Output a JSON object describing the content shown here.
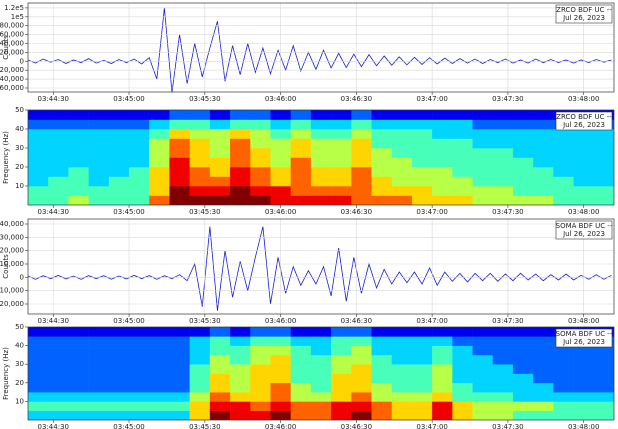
{
  "chart_data": [
    {
      "type": "line",
      "station": "ZRCO BDF UC --",
      "date": "Jul 26, 2023",
      "ylabel": "Counts",
      "color": "#1c1ccf",
      "grid": true,
      "x": [
        13460,
        13463,
        13466,
        13469,
        13472,
        13475,
        13478,
        13481,
        13484,
        13487,
        13490,
        13493,
        13496,
        13499,
        13502,
        13505,
        13508,
        13511,
        13514,
        13517,
        13520,
        13523,
        13526,
        13529,
        13532,
        13535,
        13538,
        13541,
        13544,
        13547,
        13550,
        13553,
        13556,
        13559,
        13562,
        13565,
        13568,
        13571,
        13574,
        13577,
        13580,
        13583,
        13586,
        13589,
        13592,
        13595,
        13598,
        13601,
        13604,
        13607,
        13610,
        13613,
        13616,
        13619,
        13622,
        13625,
        13628,
        13631,
        13634,
        13637,
        13640,
        13643,
        13646,
        13649,
        13652,
        13655,
        13658,
        13661,
        13664,
        13667,
        13670,
        13673,
        13676,
        13679,
        13682,
        13685,
        13688,
        13691
      ],
      "values": [
        3000,
        -4000,
        5000,
        -2000,
        4000,
        -5000,
        3000,
        -3000,
        6000,
        -4000,
        2000,
        -5000,
        4000,
        -3000,
        5000,
        -6000,
        8000,
        -40000,
        120000,
        -70000,
        60000,
        -50000,
        40000,
        -35000,
        30000,
        90000,
        -45000,
        35000,
        -30000,
        40000,
        -25000,
        30000,
        -28000,
        25000,
        -20000,
        35000,
        -22000,
        20000,
        -18000,
        25000,
        -15000,
        18000,
        -14000,
        16000,
        -12000,
        15000,
        -10000,
        12000,
        -9000,
        10000,
        -8000,
        9000,
        -7000,
        8000,
        -6000,
        7000,
        -5000,
        6000,
        -4000,
        5000,
        -5000,
        4000,
        -3000,
        5000,
        -4000,
        3000,
        -4000,
        5000,
        -3000,
        4000,
        -3000,
        3000,
        -4000,
        3000,
        -3000,
        4000,
        -2000,
        3000
      ],
      "xlim": [
        13460,
        13692
      ],
      "xticks": [
        {
          "value": 13470,
          "label": "03:44:30"
        },
        {
          "value": 13500,
          "label": "03:45:00"
        },
        {
          "value": 13530,
          "label": "03:45:30"
        },
        {
          "value": 13560,
          "label": "03:46:00"
        },
        {
          "value": 13590,
          "label": "03:46:30"
        },
        {
          "value": 13620,
          "label": "03:47:00"
        },
        {
          "value": 13650,
          "label": "03:47:30"
        },
        {
          "value": 13680,
          "label": "03:48:00"
        }
      ],
      "ylim": [
        -69000,
        131000
      ],
      "yticks": [
        {
          "value": -60000,
          "label": "-60,000"
        },
        {
          "value": -40000,
          "label": "-40,000"
        },
        {
          "value": -20000,
          "label": "-20,000"
        },
        0,
        {
          "value": 20000,
          "label": "20,000"
        },
        {
          "value": 40000,
          "label": "40,000"
        },
        {
          "value": 60000,
          "label": "60,000"
        },
        {
          "value": 80000,
          "label": "80,000"
        },
        {
          "value": 100000,
          "label": "1e5"
        },
        {
          "value": 120000,
          "label": "1.2e5"
        }
      ]
    },
    {
      "type": "heatmap",
      "station": "ZRCO BDF UC --",
      "date": "Jul 26, 2023",
      "ylabel": "Frequency (Hz)",
      "zlim": [
        0,
        9
      ],
      "xbins": [
        13460,
        13468,
        13476,
        13484,
        13492,
        13500,
        13508,
        13516,
        13524,
        13532,
        13540,
        13548,
        13556,
        13564,
        13572,
        13580,
        13588,
        13596,
        13604,
        13612,
        13620,
        13628,
        13636,
        13644,
        13652,
        13660,
        13668,
        13676,
        13684,
        13692
      ],
      "ybins": [
        0,
        5,
        10,
        15,
        20,
        25,
        30,
        35,
        40,
        45,
        50
      ],
      "values": [
        [
          4,
          4,
          5,
          4,
          4,
          4,
          7,
          9,
          9,
          9,
          9,
          9,
          8,
          8,
          8,
          8,
          7,
          7,
          7,
          6,
          6,
          6,
          5,
          5,
          5,
          5,
          4,
          4,
          4
        ],
        [
          4,
          4,
          4,
          4,
          4,
          4,
          6,
          9,
          8,
          8,
          9,
          8,
          8,
          7,
          7,
          7,
          7,
          6,
          6,
          6,
          5,
          5,
          5,
          5,
          4,
          4,
          4,
          4,
          4
        ],
        [
          3,
          4,
          4,
          3,
          4,
          4,
          6,
          8,
          7,
          7,
          8,
          7,
          6,
          7,
          6,
          6,
          7,
          6,
          5,
          5,
          5,
          5,
          4,
          4,
          4,
          4,
          4,
          3,
          3
        ],
        [
          3,
          3,
          4,
          3,
          3,
          4,
          6,
          8,
          7,
          6,
          8,
          7,
          6,
          7,
          6,
          6,
          7,
          5,
          5,
          5,
          5,
          4,
          4,
          4,
          4,
          4,
          3,
          3,
          3
        ],
        [
          3,
          3,
          3,
          3,
          3,
          3,
          5,
          8,
          6,
          6,
          7,
          6,
          5,
          7,
          5,
          5,
          6,
          5,
          5,
          4,
          4,
          4,
          4,
          4,
          4,
          3,
          3,
          3,
          3
        ],
        [
          3,
          3,
          3,
          3,
          3,
          3,
          5,
          7,
          6,
          5,
          7,
          6,
          5,
          6,
          5,
          5,
          6,
          5,
          4,
          4,
          4,
          4,
          4,
          4,
          3,
          3,
          3,
          3,
          3
        ],
        [
          3,
          3,
          3,
          3,
          3,
          3,
          5,
          7,
          6,
          5,
          7,
          5,
          5,
          6,
          5,
          5,
          6,
          4,
          4,
          4,
          4,
          4,
          3,
          3,
          3,
          3,
          3,
          3,
          3
        ],
        [
          3,
          3,
          3,
          3,
          3,
          3,
          4,
          6,
          5,
          5,
          6,
          5,
          4,
          5,
          4,
          4,
          5,
          4,
          4,
          4,
          3,
          3,
          3,
          3,
          3,
          3,
          3,
          3,
          3
        ],
        [
          2,
          2,
          2,
          2,
          2,
          2,
          3,
          4,
          4,
          3,
          4,
          4,
          3,
          4,
          3,
          3,
          4,
          3,
          3,
          3,
          3,
          3,
          2,
          2,
          2,
          2,
          2,
          2,
          2
        ],
        [
          1,
          1,
          1,
          1,
          1,
          1,
          1,
          2,
          2,
          1,
          2,
          2,
          1,
          2,
          1,
          1,
          2,
          1,
          1,
          1,
          1,
          1,
          1,
          1,
          1,
          1,
          1,
          1,
          1
        ]
      ],
      "xlim": [
        13460,
        13692
      ],
      "xticks": [
        {
          "value": 13470,
          "label": "03:44:30"
        },
        {
          "value": 13500,
          "label": "03:45:00"
        },
        {
          "value": 13530,
          "label": "03:45:30"
        },
        {
          "value": 13560,
          "label": "03:46:00"
        },
        {
          "value": 13590,
          "label": "03:46:30"
        },
        {
          "value": 13620,
          "label": "03:47:00"
        },
        {
          "value": 13650,
          "label": "03:47:30"
        },
        {
          "value": 13680,
          "label": "03:48:00"
        }
      ],
      "ylim": [
        0,
        50
      ],
      "yticks": [
        10,
        20,
        30,
        40,
        50
      ]
    },
    {
      "type": "line",
      "station": "SOMA BDF UC --",
      "date": "Jul 26, 2023",
      "ylabel": "Counts",
      "color": "#1c1ccf",
      "grid": true,
      "x": [
        13460,
        13463,
        13466,
        13469,
        13472,
        13475,
        13478,
        13481,
        13484,
        13487,
        13490,
        13493,
        13496,
        13499,
        13502,
        13505,
        13508,
        13511,
        13514,
        13517,
        13520,
        13523,
        13526,
        13529,
        13532,
        13535,
        13538,
        13541,
        13544,
        13547,
        13550,
        13553,
        13556,
        13559,
        13562,
        13565,
        13568,
        13571,
        13574,
        13577,
        13580,
        13583,
        13586,
        13589,
        13592,
        13595,
        13598,
        13601,
        13604,
        13607,
        13610,
        13613,
        13616,
        13619,
        13622,
        13625,
        13628,
        13631,
        13634,
        13637,
        13640,
        13643,
        13646,
        13649,
        13652,
        13655,
        13658,
        13661,
        13664,
        13667,
        13670,
        13673,
        13676,
        13679,
        13682,
        13685,
        13688,
        13691
      ],
      "values": [
        1000,
        -1500,
        1200,
        -1000,
        1500,
        -1200,
        1000,
        -1500,
        1300,
        -1000,
        1200,
        -1400,
        1000,
        -1200,
        1500,
        -1000,
        1300,
        -1500,
        1200,
        -1000,
        2000,
        -2500,
        10000,
        -22000,
        38000,
        -25000,
        20000,
        -15000,
        12000,
        -10000,
        15000,
        38000,
        -20000,
        15000,
        -12000,
        8000,
        -6000,
        5000,
        -5000,
        8000,
        -14000,
        22000,
        -18000,
        15000,
        -12000,
        10000,
        -8000,
        6000,
        -5000,
        4000,
        -4000,
        4000,
        -5000,
        7000,
        -6000,
        4000,
        -3000,
        3000,
        -3500,
        3000,
        -2500,
        3000,
        -3000,
        2500,
        -2500,
        3000,
        -2000,
        2500,
        -2500,
        2000,
        -2000,
        2500,
        -2000,
        1500,
        -1500,
        2000,
        -1500,
        1500
      ],
      "xlim": [
        13460,
        13692
      ],
      "xticks": [
        {
          "value": 13470,
          "label": "03:44:30"
        },
        {
          "value": 13500,
          "label": "03:45:00"
        },
        {
          "value": 13530,
          "label": "03:45:30"
        },
        {
          "value": 13560,
          "label": "03:46:00"
        },
        {
          "value": 13590,
          "label": "03:46:30"
        },
        {
          "value": 13620,
          "label": "03:47:00"
        },
        {
          "value": 13650,
          "label": "03:47:30"
        },
        {
          "value": 13680,
          "label": "03:48:00"
        }
      ],
      "ylim": [
        -27500,
        43750
      ],
      "yticks": [
        {
          "value": -20000,
          "label": "-20,000"
        },
        {
          "value": -10000,
          "label": "-10,000"
        },
        0,
        {
          "value": 10000,
          "label": "10,000"
        },
        {
          "value": 20000,
          "label": "20,000"
        },
        {
          "value": 30000,
          "label": "30,000"
        },
        {
          "value": 40000,
          "label": "40,000"
        }
      ]
    },
    {
      "type": "heatmap",
      "station": "SOMA BDF UC --",
      "date": "Jul 26, 2023",
      "ylabel": "Frequency (Hz)",
      "zlim": [
        0,
        9
      ],
      "xbins": [
        13460,
        13468,
        13476,
        13484,
        13492,
        13500,
        13508,
        13516,
        13524,
        13532,
        13540,
        13548,
        13556,
        13564,
        13572,
        13580,
        13588,
        13596,
        13604,
        13612,
        13620,
        13628,
        13636,
        13644,
        13652,
        13660,
        13668,
        13676,
        13684,
        13692
      ],
      "ybins": [
        0,
        5,
        10,
        15,
        20,
        25,
        30,
        35,
        40,
        45,
        50
      ],
      "values": [
        [
          3,
          3,
          3,
          3,
          3,
          3,
          3,
          3,
          6,
          9,
          8,
          8,
          9,
          7,
          7,
          8,
          9,
          7,
          6,
          6,
          8,
          6,
          5,
          5,
          4,
          4,
          4,
          4,
          4
        ],
        [
          4,
          4,
          4,
          4,
          4,
          4,
          4,
          4,
          6,
          8,
          8,
          7,
          8,
          7,
          7,
          8,
          8,
          7,
          6,
          6,
          8,
          6,
          5,
          5,
          5,
          5,
          4,
          4,
          4
        ],
        [
          3,
          3,
          3,
          3,
          3,
          3,
          3,
          3,
          5,
          7,
          6,
          6,
          7,
          5,
          5,
          6,
          7,
          5,
          5,
          5,
          6,
          4,
          4,
          4,
          3,
          3,
          3,
          3,
          3
        ],
        [
          2,
          2,
          2,
          2,
          2,
          2,
          2,
          2,
          4,
          6,
          5,
          6,
          7,
          5,
          4,
          6,
          6,
          5,
          4,
          4,
          5,
          4,
          3,
          3,
          3,
          3,
          2,
          2,
          2
        ],
        [
          2,
          2,
          2,
          2,
          2,
          2,
          2,
          2,
          4,
          6,
          5,
          6,
          6,
          4,
          4,
          6,
          6,
          4,
          4,
          4,
          5,
          3,
          3,
          3,
          3,
          2,
          2,
          2,
          2
        ],
        [
          2,
          2,
          2,
          2,
          2,
          2,
          2,
          2,
          4,
          5,
          5,
          6,
          6,
          4,
          4,
          5,
          6,
          4,
          4,
          4,
          5,
          3,
          3,
          3,
          2,
          2,
          2,
          2,
          2
        ],
        [
          2,
          2,
          2,
          2,
          2,
          2,
          2,
          2,
          3,
          5,
          4,
          5,
          6,
          4,
          4,
          5,
          5,
          4,
          3,
          3,
          4,
          3,
          3,
          2,
          2,
          2,
          2,
          2,
          2
        ],
        [
          2,
          2,
          2,
          2,
          2,
          2,
          2,
          2,
          3,
          4,
          4,
          5,
          5,
          4,
          3,
          4,
          5,
          3,
          3,
          3,
          4,
          3,
          2,
          2,
          2,
          2,
          2,
          2,
          2
        ],
        [
          2,
          2,
          2,
          2,
          2,
          2,
          2,
          2,
          3,
          4,
          3,
          4,
          4,
          3,
          3,
          4,
          4,
          3,
          3,
          3,
          3,
          2,
          2,
          2,
          2,
          2,
          2,
          2,
          2
        ],
        [
          1,
          1,
          1,
          1,
          1,
          1,
          1,
          1,
          1,
          2,
          1,
          2,
          2,
          1,
          1,
          2,
          2,
          1,
          1,
          1,
          1,
          1,
          1,
          1,
          1,
          1,
          1,
          1,
          1
        ]
      ],
      "xlim": [
        13460,
        13692
      ],
      "xticks": [
        {
          "value": 13470,
          "label": "03:44:30"
        },
        {
          "value": 13500,
          "label": "03:45:00"
        },
        {
          "value": 13530,
          "label": "03:45:30"
        },
        {
          "value": 13560,
          "label": "03:46:00"
        },
        {
          "value": 13590,
          "label": "03:46:30"
        },
        {
          "value": 13620,
          "label": "03:47:00"
        },
        {
          "value": 13650,
          "label": "03:47:30"
        },
        {
          "value": 13680,
          "label": "03:48:00"
        }
      ],
      "ylim": [
        0,
        50
      ],
      "yticks": [
        10,
        20,
        30,
        40,
        50
      ]
    }
  ]
}
